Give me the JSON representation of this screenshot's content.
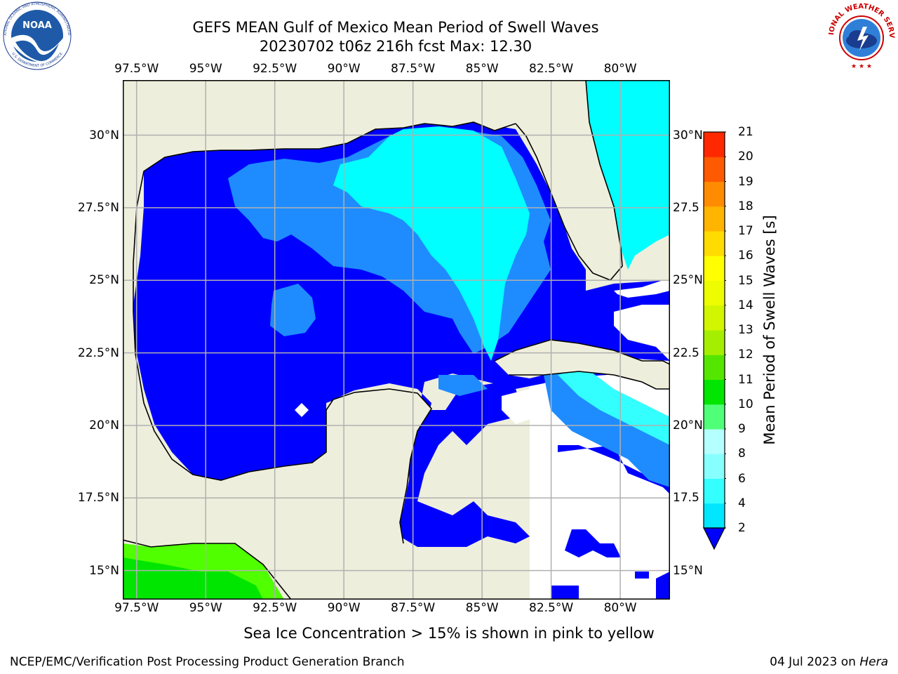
{
  "title_line1": "GEFS MEAN Gulf of Mexico Mean Period of Swell Waves",
  "title_line2": "20230702 t06z 216h fcst   Max: 12.30",
  "lon_labels": [
    "97.5°W",
    "95°W",
    "92.5°W",
    "90°W",
    "87.5°W",
    "85°W",
    "82.5°W",
    "80°W"
  ],
  "lat_labels": [
    "30°N",
    "27.5°N",
    "25°N",
    "22.5°N",
    "20°N",
    "17.5°N",
    "15°N"
  ],
  "lat_labels_right": [
    "30°N",
    "27.5",
    "25°N",
    "22.5",
    "20°N",
    "17.5",
    "15°N"
  ],
  "colorbar": {
    "title": "Mean Period of Swell Waves [s]",
    "ticks": [
      "2",
      "4",
      "6",
      "8",
      "9",
      "10",
      "11",
      "12",
      "13",
      "14",
      "15",
      "16",
      "17",
      "18",
      "19",
      "20",
      "21"
    ],
    "colors": [
      "#0a5cff",
      "#00e6ff",
      "#33ffff",
      "#88ffff",
      "#b4ffff",
      "#50ff78",
      "#00e600",
      "#55e600",
      "#a6ee00",
      "#d2f500",
      "#eefc00",
      "#ffff00",
      "#ffdc00",
      "#ffb400",
      "#ff8c00",
      "#ff5a00",
      "#ff2800",
      "#ff0000"
    ],
    "extend_color": "#0000ff"
  },
  "map": {
    "land_color": "#eeeedc",
    "level_colors": {
      "2-4": "#0000ff",
      "4-6": "#1e8cff",
      "6-8": "#00ffff",
      "8-9": "#40ffff",
      "10-11": "#50ff00",
      "11-12": "#00e600"
    },
    "extent": {
      "lon_min": -98.0,
      "lon_max": -78.2,
      "lat_min": 14.0,
      "lat_max": 31.9
    }
  },
  "note": "Sea Ice Concentration > 15% is shown in pink to yellow",
  "footer_left": "NCEP/EMC/Verification Post Processing Product Generation Branch",
  "footer_right_date": "04 Jul 2023 on ",
  "footer_right_host": "Hera",
  "logos": {
    "noaa_text": "NOAA",
    "noaa_ring": "NATIONAL OCEANIC AND ATMOSPHERIC ADMINISTRATION",
    "noaa_ring_bottom": "U.S. DEPARTMENT OF COMMERCE",
    "nws_ring": "NATIONAL WEATHER SERVICE"
  }
}
